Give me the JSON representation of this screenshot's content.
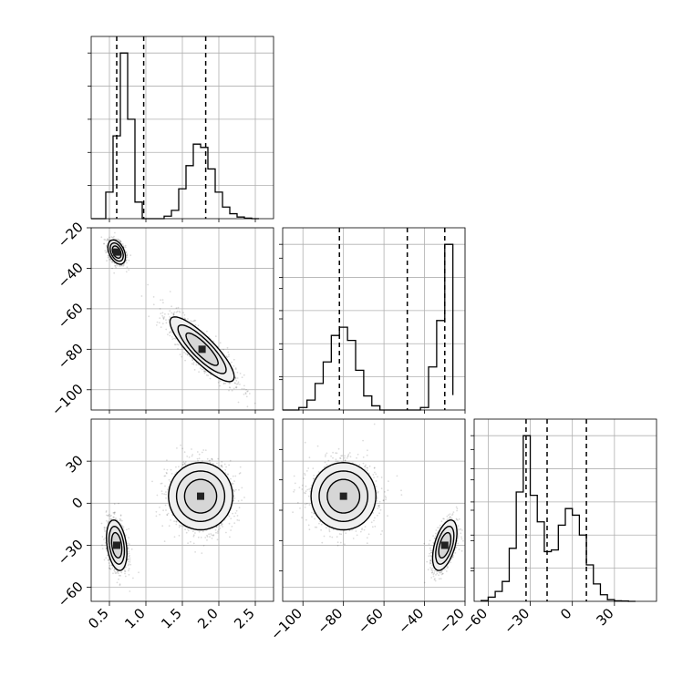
{
  "chart_data": {
    "type": "corner",
    "parameters": [
      {
        "name": "",
        "range": [
          0.25,
          2.75
        ],
        "ticks": [
          0.5,
          1.0,
          1.5,
          2.0,
          2.5
        ],
        "tick_labels": [
          "0.5",
          "1.0",
          "1.5",
          "2.0",
          "2.5"
        ]
      },
      {
        "name": "",
        "range": [
          -110,
          -20
        ],
        "ticks": [
          -100,
          -80,
          -60,
          -40,
          -20
        ],
        "tick_labels": [
          "−100",
          "−80",
          "−60",
          "−40",
          "−20"
        ]
      },
      {
        "name": "",
        "range": [
          -70,
          60
        ],
        "ticks": [
          -60,
          -30,
          0,
          30
        ],
        "tick_labels": [
          "−60",
          "−30",
          "0",
          "30"
        ]
      }
    ],
    "histograms": [
      {
        "param": 0,
        "bin_edges": [
          0.25,
          0.35,
          0.45,
          0.55,
          0.65,
          0.75,
          0.85,
          0.95,
          1.05,
          1.15,
          1.25,
          1.35,
          1.45,
          1.55,
          1.65,
          1.75,
          1.85,
          1.95,
          2.05,
          2.15,
          2.25,
          2.35,
          2.45,
          2.55
        ],
        "counts": [
          0,
          0,
          160,
          500,
          1000,
          600,
          100,
          0,
          0,
          0,
          15,
          50,
          180,
          320,
          450,
          430,
          300,
          160,
          70,
          30,
          10,
          3,
          0
        ],
        "quantiles": [
          0.6,
          0.97,
          1.82
        ]
      },
      {
        "param": 1,
        "bin_edges": [
          -110,
          -106,
          -102,
          -98,
          -94,
          -90,
          -86,
          -82,
          -78,
          -74,
          -70,
          -66,
          -62,
          -58,
          -54,
          -50,
          -46,
          -42,
          -38,
          -34,
          -30,
          -26
        ],
        "counts": [
          0,
          0,
          15,
          60,
          160,
          290,
          450,
          500,
          420,
          240,
          85,
          25,
          0,
          0,
          0,
          0,
          0,
          15,
          260,
          540,
          1000,
          90
        ],
        "quantiles": [
          -82,
          -48.5,
          -30
        ]
      },
      {
        "param": 2,
        "bin_edges": [
          -65,
          -60,
          -55,
          -50,
          -45,
          -40,
          -35,
          -30,
          -25,
          -20,
          -15,
          -10,
          -5,
          0,
          5,
          10,
          15,
          20,
          25,
          30,
          35,
          40,
          45
        ],
        "counts": [
          5,
          25,
          60,
          120,
          320,
          660,
          1000,
          640,
          480,
          300,
          310,
          460,
          560,
          520,
          400,
          220,
          105,
          40,
          10,
          3,
          2,
          0
        ],
        "quantiles": [
          -33,
          -18,
          10
        ]
      }
    ],
    "joint": [
      {
        "x_param": 0,
        "y_param": 1,
        "clusters": [
          {
            "center": [
              0.6,
              -32
            ],
            "sigma": [
              0.06,
              3.0
            ],
            "rho": -0.4,
            "n": 900
          },
          {
            "center": [
              1.77,
              -80
            ],
            "sigma": [
              0.22,
              8.0
            ],
            "rho": -0.85,
            "n": 1300
          }
        ]
      },
      {
        "x_param": 0,
        "y_param": 2,
        "clusters": [
          {
            "center": [
              0.6,
              -30
            ],
            "sigma": [
              0.07,
              9.0
            ],
            "rho": -0.3,
            "n": 1100
          },
          {
            "center": [
              1.75,
              5
            ],
            "sigma": [
              0.22,
              12.0
            ],
            "rho": 0.0,
            "n": 1400
          }
        ]
      },
      {
        "x_param": 1,
        "y_param": 2,
        "clusters": [
          {
            "center": [
              -80,
              5
            ],
            "sigma": [
              8.0,
              12.0
            ],
            "rho": 0.0,
            "n": 1400
          },
          {
            "center": [
              -30,
              -30
            ],
            "sigma": [
              3.0,
              9.0
            ],
            "rho": 0.5,
            "n": 1100
          }
        ]
      }
    ],
    "contour_levels_sigma": [
      1.0,
      1.5,
      2.0
    ],
    "grid": true,
    "quantile_lines": "dashed"
  }
}
